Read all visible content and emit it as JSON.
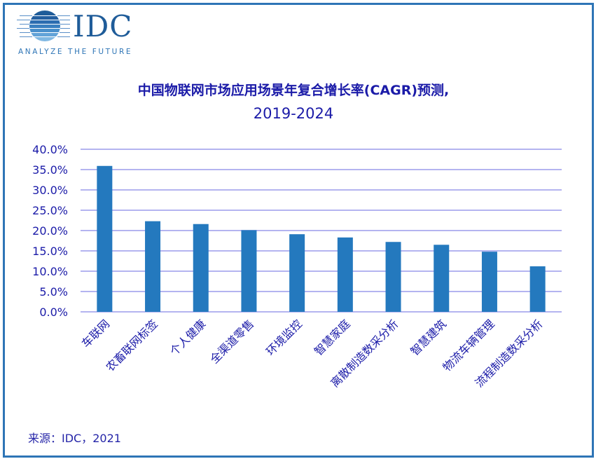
{
  "logo": {
    "name": "IDC",
    "tagline": "ANALYZE THE FUTURE"
  },
  "title": {
    "line1": "中国物联网市场应用场景年复合增长率(CAGR)预测,",
    "line2": "2019-2024"
  },
  "source": "来源：IDC，2021",
  "colors": {
    "bar": "#2479BE",
    "grid": "#B4B4F0",
    "text": "#1B1BA8",
    "frame": "#2E75B6"
  },
  "chart_data": {
    "type": "bar",
    "title": "中国物联网市场应用场景年复合增长率(CAGR)预测, 2019-2024",
    "xlabel": "",
    "ylabel": "",
    "categories": [
      "车联网",
      "农畜联网标签",
      "个人健康",
      "全渠道零售",
      "环境监控",
      "智慧家庭",
      "离散制造数采分析",
      "智慧建筑",
      "物流车辆管理",
      "流程制造数采分析"
    ],
    "values": [
      35.9,
      22.3,
      21.6,
      20.1,
      19.1,
      18.3,
      17.2,
      16.5,
      14.8,
      11.2
    ],
    "unit": "%",
    "ylim": [
      0,
      40
    ],
    "yticks": [
      "0.0%",
      "5.0%",
      "10.0%",
      "15.0%",
      "20.0%",
      "25.0%",
      "30.0%",
      "35.0%",
      "40.0%"
    ],
    "grid": true,
    "legend": null
  }
}
